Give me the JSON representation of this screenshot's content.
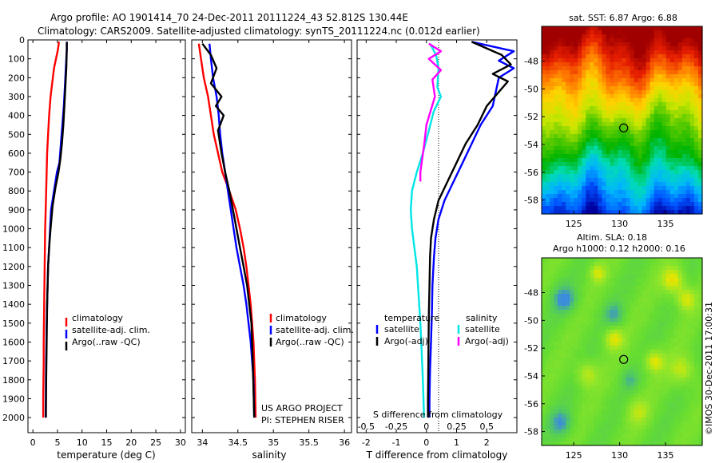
{
  "title": {
    "line1": "Argo profile: AO 1901414_70 24-Dec-2011 20111224_43 52.812S 130.44E",
    "line2": "Climatology: CARS2009. Satellite-adjusted climatology: synTS_20111224.nc (0.012d earlier)"
  },
  "credits": {
    "project": "US ARGO PROJECT",
    "pi": "PI: STEPHEN RISER",
    "stamp": "©IMOS 30-Dec-2011 17:00:31"
  },
  "colors": {
    "climatology": "#ff0000",
    "satellite": "#0000ff",
    "argo": "#000000",
    "salinity_satellite": "#00e5e5",
    "salinity_argo": "#ff00ff"
  },
  "chart_data": [
    {
      "type": "line",
      "id": "temperature",
      "xlabel": "temperature (deg C)",
      "ylabel": "",
      "xlim": [
        -1,
        31
      ],
      "ylim": [
        2080,
        0
      ],
      "xticks": [
        0,
        5,
        10,
        15,
        20,
        25,
        30
      ],
      "yticks": [
        0,
        100,
        200,
        300,
        400,
        500,
        600,
        700,
        800,
        900,
        1000,
        1100,
        1200,
        1300,
        1400,
        1500,
        1600,
        1700,
        1800,
        1900,
        2000
      ],
      "legend": [
        "climatology",
        "satellite-adj. clim.",
        "Argo(..raw -QC)"
      ],
      "series": [
        {
          "name": "climatology",
          "color": "#ff0000",
          "x": [
            5.3,
            5.1,
            4.3,
            3.6,
            3.3,
            3.1,
            2.9,
            2.8,
            2.7,
            2.6,
            2.5,
            2.45,
            2.4,
            2.35,
            2.3,
            2.25,
            2.2,
            2.2,
            2.15,
            2.1,
            2.1
          ],
          "y": [
            10,
            50,
            150,
            300,
            400,
            500,
            600,
            700,
            800,
            900,
            1000,
            1100,
            1200,
            1300,
            1400,
            1500,
            1600,
            1700,
            1800,
            1900,
            2000
          ]
        },
        {
          "name": "satellite-adj. clim.",
          "color": "#0000ff",
          "x": [
            6.9,
            6.9,
            6.7,
            6.5,
            6.3,
            6.0,
            5.7,
            5.4,
            4.9,
            4.3,
            3.7,
            3.5,
            3.3,
            3.1,
            3.0,
            2.9,
            2.8,
            2.75,
            2.7,
            2.65,
            2.6
          ],
          "y": [
            10,
            50,
            150,
            250,
            350,
            450,
            550,
            650,
            700,
            800,
            900,
            1000,
            1100,
            1200,
            1300,
            1400,
            1500,
            1600,
            1700,
            1800,
            2000
          ]
        },
        {
          "name": "Argo(..raw -QC)",
          "color": "#000000",
          "x": [
            6.9,
            6.9,
            6.8,
            6.6,
            6.4,
            6.2,
            5.9,
            5.6,
            5.2,
            4.6,
            4.0,
            3.6,
            3.3,
            3.1,
            3.0,
            2.9,
            2.85,
            2.8,
            2.75,
            2.7,
            2.65
          ],
          "y": [
            10,
            50,
            150,
            250,
            350,
            450,
            550,
            630,
            700,
            780,
            880,
            1000,
            1100,
            1200,
            1300,
            1400,
            1500,
            1600,
            1700,
            1800,
            2000
          ]
        }
      ]
    },
    {
      "type": "line",
      "id": "salinity",
      "xlabel": "salinity",
      "xlim": [
        33.85,
        36.1
      ],
      "ylim": [
        2080,
        0
      ],
      "xticks": [
        34,
        34.5,
        35,
        35.5,
        36
      ],
      "xticklabels": [
        "34",
        "34.5",
        "35",
        "35.5",
        "36"
      ],
      "legend": [
        "climatology",
        "satellite-adj. clim.",
        "Argo(..raw -QC)"
      ],
      "series": [
        {
          "name": "climatology",
          "color": "#ff0000",
          "x": [
            33.95,
            33.98,
            34.02,
            34.08,
            34.12,
            34.16,
            34.22,
            34.28,
            34.38,
            34.47,
            34.53,
            34.58,
            34.62,
            34.65,
            34.68,
            34.7,
            34.72,
            34.73,
            34.74,
            34.75
          ],
          "y": [
            20,
            100,
            200,
            300,
            400,
            500,
            600,
            700,
            800,
            900,
            1000,
            1100,
            1200,
            1300,
            1400,
            1500,
            1600,
            1700,
            1800,
            2000
          ]
        },
        {
          "name": "satellite-adj. clim.",
          "color": "#0000ff",
          "x": [
            34.1,
            34.12,
            34.15,
            34.2,
            34.23,
            34.25,
            34.28,
            34.32,
            34.36,
            34.4,
            34.44,
            34.48,
            34.53,
            34.58,
            34.62,
            34.65,
            34.68,
            34.7,
            34.72,
            34.73
          ],
          "y": [
            20,
            100,
            200,
            300,
            400,
            500,
            600,
            700,
            800,
            900,
            1000,
            1100,
            1200,
            1300,
            1400,
            1500,
            1600,
            1700,
            1800,
            2000
          ]
        },
        {
          "name": "Argo(..raw -QC)",
          "color": "#000000",
          "x": [
            34.0,
            34.12,
            34.2,
            34.12,
            34.27,
            34.19,
            34.3,
            34.22,
            34.27,
            34.32,
            34.38,
            34.43,
            34.48,
            34.53,
            34.58,
            34.63,
            34.66,
            34.69,
            34.71,
            34.73
          ],
          "y": [
            20,
            80,
            150,
            230,
            300,
            350,
            400,
            480,
            600,
            700,
            800,
            900,
            1000,
            1100,
            1200,
            1300,
            1400,
            1500,
            1700,
            2000
          ]
        }
      ]
    },
    {
      "type": "line",
      "id": "difference",
      "xlabel": "T difference from climatology",
      "x2label": "S difference from climatology",
      "xlim": [
        -2.3,
        3.0
      ],
      "x2lim": [
        -0.575,
        0.75
      ],
      "ylim": [
        2080,
        0
      ],
      "xticks": [
        -2,
        -1,
        0,
        1,
        2
      ],
      "x2ticks": [
        -0.5,
        -0.25,
        0,
        0.25,
        0.5
      ],
      "x2ticklabels": [
        "-0.5",
        "-0.25",
        "0",
        "0.25",
        "0.5"
      ],
      "legend_headers": [
        "temperature",
        "salinity"
      ],
      "legend": [
        "satellite",
        "Argo(-adj)",
        "satellite",
        "Argo(-adj)"
      ],
      "series": [
        {
          "name": "satellite",
          "group": "temperature",
          "color": "#0000ff",
          "x": [
            1.5,
            2.9,
            2.4,
            2.9,
            2.4,
            2.2,
            1.8,
            1.5,
            1.2,
            0.9,
            0.6,
            0.4,
            0.3,
            0.25,
            0.2,
            0.18,
            0.15,
            0.12,
            0.1,
            0.1
          ],
          "y": [
            10,
            60,
            110,
            150,
            200,
            350,
            450,
            550,
            650,
            750,
            850,
            950,
            1050,
            1150,
            1300,
            1450,
            1600,
            1750,
            1900,
            2000
          ]
        },
        {
          "name": "Argo(-adj)",
          "group": "temperature",
          "color": "#000000",
          "x": [
            1.5,
            2.5,
            2.8,
            2.2,
            2.7,
            2.0,
            1.7,
            1.3,
            1.0,
            0.7,
            0.4,
            0.25,
            0.15,
            0.12,
            0.1,
            0.08,
            0.07,
            0.06,
            0.05,
            0.05
          ],
          "y": [
            10,
            80,
            130,
            180,
            220,
            350,
            450,
            550,
            650,
            750,
            850,
            950,
            1050,
            1150,
            1300,
            1450,
            1600,
            1750,
            1900,
            2000
          ]
        },
        {
          "name": "satellite",
          "group": "salinity",
          "color": "#00e5e5",
          "x": [
            0.03,
            0.08,
            0.1,
            0.09,
            0.12,
            0.06,
            0.02,
            -0.03,
            -0.08,
            -0.12,
            -0.13,
            -0.12,
            -0.1,
            -0.08,
            -0.07,
            -0.06,
            -0.05,
            -0.04,
            -0.03,
            -0.02
          ],
          "y": [
            20,
            80,
            150,
            250,
            300,
            380,
            480,
            600,
            700,
            800,
            900,
            1000,
            1100,
            1200,
            1300,
            1400,
            1500,
            1650,
            1800,
            2000
          ]
        },
        {
          "name": "Argo(-adj)",
          "group": "salinity",
          "color": "#ff00ff",
          "x": [
            0.02,
            0.12,
            0.02,
            0.12,
            0.05,
            0.07,
            0.0,
            -0.02,
            -0.04,
            -0.05,
            -0.05
          ],
          "y": [
            20,
            60,
            100,
            160,
            210,
            300,
            450,
            560,
            650,
            700,
            750
          ]
        }
      ]
    },
    {
      "type": "heatmap",
      "id": "sst",
      "title": "sat. SST: 6.87 Argo: 6.88",
      "xticks": [
        125,
        130,
        135
      ],
      "yticks": [
        -48,
        -50,
        -52,
        -54,
        -56,
        -58
      ],
      "xlim": [
        121.5,
        139
      ],
      "ylim": [
        -59,
        -45.5
      ],
      "marker": [
        130.44,
        -52.81
      ],
      "colors": [
        "#0000a0",
        "#0050ff",
        "#00b4ff",
        "#00dcb4",
        "#00b400",
        "#50c800",
        "#c8e600",
        "#ffd200",
        "#ff7800",
        "#e61e00",
        "#a00000"
      ]
    },
    {
      "type": "heatmap",
      "id": "sla",
      "title": "Altim. SLA: 0.18",
      "subtitle": "Argo h1000: 0.12 h2000: 0.16",
      "xticks": [
        125,
        130,
        135
      ],
      "yticks": [
        -48,
        -50,
        -52,
        -54,
        -56,
        -58
      ],
      "xlim": [
        121.5,
        139
      ],
      "ylim": [
        -59,
        -45.5
      ],
      "marker": [
        130.44,
        -52.81
      ],
      "colors": [
        "#3c8cdc",
        "#50c864",
        "#64dc32",
        "#96e628",
        "#e6e600",
        "#f5aa00",
        "#e67800"
      ]
    }
  ]
}
